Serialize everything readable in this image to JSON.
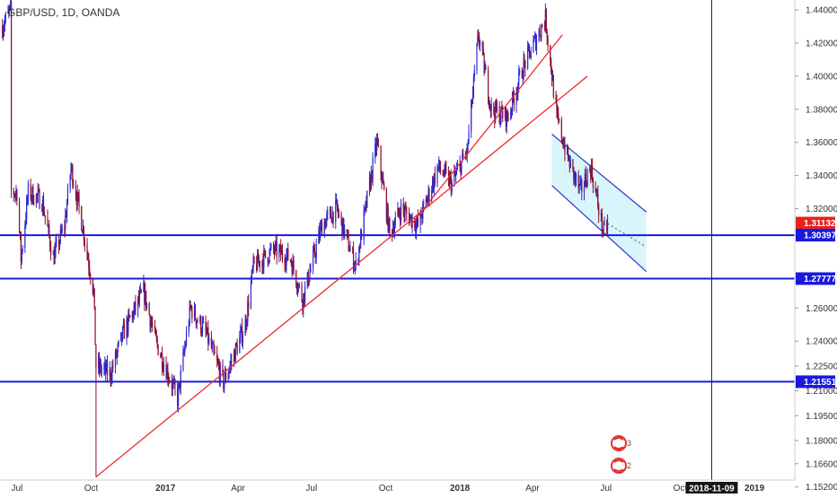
{
  "header": {
    "title": "GBP/USD, 1D, OANDA"
  },
  "colors": {
    "background": "#ffffff",
    "candle_up": "#2b2bd4",
    "candle_down": "#8f0e2b",
    "trendline": "#ee2a2a",
    "support_line": "#1a1adc",
    "channel_fill": "#bdeef7",
    "channel_edge": "#3333cc",
    "price_badge_red": "#e8211f",
    "price_badge_blue": "#1a1adc",
    "date_badge": "#161616",
    "axis_text": "#333333"
  },
  "chart_data": {
    "type": "candlestick",
    "title": "GBP/USD, 1D, OANDA",
    "xlabel": "",
    "ylabel": "",
    "x_ticks": [
      "Jul",
      "Oct",
      "2017",
      "Apr",
      "Jul",
      "Oct",
      "2018",
      "Apr",
      "Jul",
      "Oct",
      "2019"
    ],
    "x_tick_dates": [
      "2016-07-01",
      "2016-10-01",
      "2017-01-01",
      "2017-04-01",
      "2017-07-01",
      "2017-10-01",
      "2018-01-01",
      "2018-04-01",
      "2018-07-01",
      "2018-10-01",
      "2019-01-01"
    ],
    "xlim": [
      "2016-06-10",
      "2019-02-20"
    ],
    "y_ticks": [
      "1.44000",
      "1.42000",
      "1.40000",
      "1.38000",
      "1.36000",
      "1.34000",
      "1.32000",
      "1.26000",
      "1.24000",
      "1.22500",
      "1.21000",
      "1.19500",
      "1.18000",
      "1.16600",
      "1.15200"
    ],
    "ylim": [
      1.148,
      1.446
    ],
    "grid": false,
    "legend": "none",
    "price_path": [
      [
        "2016-06-13",
        1.43
      ],
      [
        "2016-06-23",
        1.44
      ],
      [
        "2016-06-24",
        1.33
      ],
      [
        "2016-07-01",
        1.33
      ],
      [
        "2016-07-06",
        1.29
      ],
      [
        "2016-07-15",
        1.33
      ],
      [
        "2016-08-01",
        1.325
      ],
      [
        "2016-08-15",
        1.29
      ],
      [
        "2016-08-29",
        1.31
      ],
      [
        "2016-09-06",
        1.345
      ],
      [
        "2016-09-22",
        1.305
      ],
      [
        "2016-10-04",
        1.27
      ],
      [
        "2016-10-07",
        1.225
      ],
      [
        "2016-10-25",
        1.22
      ],
      [
        "2016-11-10",
        1.245
      ],
      [
        "2016-12-05",
        1.27
      ],
      [
        "2016-12-20",
        1.24
      ],
      [
        "2017-01-16",
        1.205
      ],
      [
        "2017-02-01",
        1.26
      ],
      [
        "2017-02-20",
        1.245
      ],
      [
        "2017-03-14",
        1.215
      ],
      [
        "2017-04-10",
        1.25
      ],
      [
        "2017-04-20",
        1.285
      ],
      [
        "2017-05-15",
        1.295
      ],
      [
        "2017-06-05",
        1.29
      ],
      [
        "2017-06-20",
        1.265
      ],
      [
        "2017-07-14",
        1.31
      ],
      [
        "2017-08-01",
        1.32
      ],
      [
        "2017-08-25",
        1.285
      ],
      [
        "2017-09-20",
        1.36
      ],
      [
        "2017-10-06",
        1.305
      ],
      [
        "2017-10-20",
        1.32
      ],
      [
        "2017-11-10",
        1.31
      ],
      [
        "2017-12-05",
        1.345
      ],
      [
        "2017-12-22",
        1.335
      ],
      [
        "2018-01-10",
        1.355
      ],
      [
        "2018-01-24",
        1.425
      ],
      [
        "2018-02-09",
        1.38
      ],
      [
        "2018-03-01",
        1.375
      ],
      [
        "2018-03-20",
        1.405
      ],
      [
        "2018-04-17",
        1.435
      ],
      [
        "2018-05-01",
        1.375
      ],
      [
        "2018-05-15",
        1.35
      ],
      [
        "2018-05-30",
        1.33
      ],
      [
        "2018-06-12",
        1.345
      ],
      [
        "2018-06-28",
        1.305
      ],
      [
        "2018-07-03",
        1.311
      ]
    ],
    "horizontal_levels": [
      {
        "value": 1.30397,
        "label": "1.30397"
      },
      {
        "value": 1.27777,
        "label": "1.27777"
      },
      {
        "value": 1.21551,
        "label": "1.21551"
      }
    ],
    "current_price": {
      "value": 1.31132,
      "label": "1.31132"
    },
    "trendlines": [
      {
        "from": [
          "2016-10-07",
          1.158
        ],
        "to": [
          "2018-06-08",
          1.4
        ]
      },
      {
        "from": [
          "2017-11-01",
          1.31
        ],
        "to": [
          "2018-05-08",
          1.425
        ]
      }
    ],
    "channel": {
      "upper_from": [
        "2018-04-25",
        1.365
      ],
      "upper_to": [
        "2018-08-20",
        1.318
      ],
      "lower_from": [
        "2018-04-25",
        1.334
      ],
      "lower_to": [
        "2018-08-20",
        1.282
      ],
      "projection_to": [
        "2018-08-20",
        1.297
      ]
    },
    "cursor_date": "2018-11-09",
    "cursor_label": "2018-11-09"
  }
}
